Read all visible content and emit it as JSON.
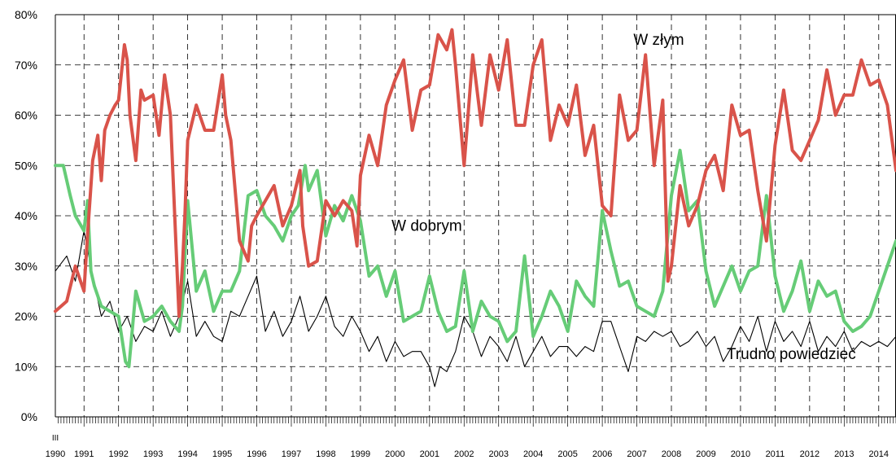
{
  "chart_data": {
    "type": "line",
    "title": "",
    "xlabel": "",
    "ylabel": "",
    "x_range": [
      1990.17,
      2014.5
    ],
    "ylim": [
      0,
      80
    ],
    "y_ticks": [
      "0%",
      "10%",
      "20%",
      "30%",
      "40%",
      "50%",
      "60%",
      "70%",
      "80%"
    ],
    "x_start_month_label": "III",
    "x_ticks": [
      "1990",
      "1991",
      "1992",
      "1993",
      "1994",
      "1995",
      "1996",
      "1997",
      "1998",
      "1999",
      "2000",
      "2001",
      "2002",
      "2003",
      "2004",
      "2005",
      "2006",
      "2007",
      "2008",
      "2009",
      "2010",
      "2011",
      "2012",
      "2013",
      "2014"
    ],
    "grid": true,
    "legend": "none",
    "annotations": [
      {
        "text": "W złym",
        "x": 2006.9,
        "y": 74
      },
      {
        "text": "W dobrym",
        "x": 1999.9,
        "y": 37
      },
      {
        "text": "Trudno powiedzieć",
        "x": 2009.6,
        "y": 11.5
      }
    ],
    "series": [
      {
        "label": "W złym",
        "color": "#d9534a",
        "x": [
          1990.17,
          1990.5,
          1990.75,
          1991.0,
          1991.1,
          1991.25,
          1991.4,
          1991.5,
          1991.6,
          1991.75,
          1991.9,
          1992.0,
          1992.17,
          1992.25,
          1992.33,
          1992.5,
          1992.65,
          1992.75,
          1993.0,
          1993.17,
          1993.33,
          1993.5,
          1993.75,
          1993.85,
          1993.92,
          1994.0,
          1994.25,
          1994.5,
          1994.75,
          1995.0,
          1995.1,
          1995.25,
          1995.5,
          1995.75,
          1995.85,
          1996.0,
          1996.25,
          1996.5,
          1996.75,
          1997.0,
          1997.25,
          1997.33,
          1997.5,
          1997.75,
          1998.0,
          1998.25,
          1998.5,
          1998.75,
          1998.9,
          1999.0,
          1999.25,
          1999.5,
          1999.75,
          2000.0,
          2000.25,
          2000.5,
          2000.75,
          2001.0,
          2001.25,
          2001.5,
          2001.65,
          2001.75,
          2002.0,
          2002.25,
          2002.5,
          2002.75,
          2003.0,
          2003.25,
          2003.5,
          2003.75,
          2004.0,
          2004.25,
          2004.5,
          2004.75,
          2005.0,
          2005.25,
          2005.5,
          2005.75,
          2006.0,
          2006.25,
          2006.5,
          2006.75,
          2007.0,
          2007.25,
          2007.5,
          2007.75,
          2007.9,
          2008.0,
          2008.25,
          2008.5,
          2008.75,
          2009.0,
          2009.25,
          2009.5,
          2009.75,
          2010.0,
          2010.25,
          2010.5,
          2010.75,
          2011.0,
          2011.25,
          2011.5,
          2011.75,
          2012.0,
          2012.25,
          2012.5,
          2012.75,
          2013.0,
          2013.25,
          2013.5,
          2013.75,
          2014.0,
          2014.25,
          2014.5
        ],
        "values": [
          21,
          23,
          30,
          25,
          36,
          51,
          56,
          47,
          57,
          60,
          62,
          63,
          74,
          71,
          60,
          51,
          65,
          63,
          64,
          56,
          68,
          60,
          20,
          30,
          40,
          55,
          62,
          57,
          57,
          68,
          60,
          55,
          35,
          31,
          38,
          40,
          43,
          46,
          38,
          42,
          49,
          38,
          30,
          31,
          43,
          40,
          43,
          41,
          34,
          48,
          56,
          50,
          62,
          67,
          71,
          57,
          65,
          66,
          76,
          73,
          77,
          70,
          50,
          72,
          58,
          72,
          65,
          75,
          58,
          58,
          70,
          75,
          55,
          62,
          58,
          66,
          52,
          58,
          42,
          40,
          64,
          55,
          57,
          72,
          50,
          63,
          27,
          30,
          46,
          38,
          42,
          49,
          52,
          45,
          62,
          56,
          57,
          45,
          35,
          54,
          65,
          53,
          51,
          55,
          59,
          69,
          60,
          64,
          64,
          71,
          66,
          67,
          62,
          49
        ]
      },
      {
        "label": "W dobrym",
        "color": "#66cc77",
        "x": [
          1990.17,
          1990.4,
          1990.6,
          1990.75,
          1991.0,
          1991.1,
          1991.2,
          1991.3,
          1991.5,
          1991.75,
          1992.0,
          1992.2,
          1992.3,
          1992.5,
          1992.75,
          1993.0,
          1993.25,
          1993.5,
          1993.75,
          1993.85,
          1994.0,
          1994.25,
          1994.5,
          1994.75,
          1995.0,
          1995.25,
          1995.5,
          1995.75,
          1996.0,
          1996.25,
          1996.5,
          1996.75,
          1997.0,
          1997.2,
          1997.4,
          1997.5,
          1997.75,
          1998.0,
          1998.25,
          1998.5,
          1998.75,
          1999.0,
          1999.25,
          1999.5,
          1999.75,
          2000.0,
          2000.25,
          2000.5,
          2000.75,
          2001.0,
          2001.25,
          2001.5,
          2001.75,
          2002.0,
          2002.25,
          2002.5,
          2002.75,
          2003.0,
          2003.25,
          2003.5,
          2003.75,
          2004.0,
          2004.25,
          2004.5,
          2004.75,
          2005.0,
          2005.25,
          2005.5,
          2005.75,
          2006.0,
          2006.25,
          2006.5,
          2006.75,
          2007.0,
          2007.25,
          2007.5,
          2007.75,
          2008.0,
          2008.25,
          2008.5,
          2008.75,
          2009.0,
          2009.25,
          2009.5,
          2009.75,
          2010.0,
          2010.25,
          2010.5,
          2010.75,
          2011.0,
          2011.25,
          2011.5,
          2011.75,
          2012.0,
          2012.25,
          2012.5,
          2012.75,
          2013.0,
          2013.25,
          2013.5,
          2013.75,
          2014.0,
          2014.25,
          2014.5
        ],
        "values": [
          50,
          50,
          44,
          40,
          37,
          43,
          29,
          26,
          22,
          21,
          20,
          11,
          10,
          25,
          19,
          20,
          22,
          19,
          17,
          22,
          43,
          25,
          29,
          21,
          25,
          25,
          29,
          44,
          45,
          40,
          38,
          35,
          40,
          42,
          50,
          45,
          49,
          36,
          42,
          39,
          44,
          39,
          28,
          30,
          24,
          29,
          19,
          20,
          21,
          28,
          21,
          17,
          18,
          29,
          17,
          23,
          20,
          19,
          15,
          17,
          32,
          16,
          20,
          25,
          22,
          17,
          27,
          24,
          22,
          41,
          33,
          26,
          27,
          22,
          21,
          20,
          25,
          44,
          53,
          41,
          43,
          29,
          22,
          26,
          30,
          25,
          29,
          30,
          44,
          28,
          21,
          25,
          31,
          21,
          27,
          24,
          25,
          19,
          17,
          18,
          20,
          25,
          30,
          35
        ]
      },
      {
        "label": "Trudno powiedzieć",
        "color": "#000000",
        "x": [
          1990.17,
          1990.5,
          1990.75,
          1991.0,
          1991.25,
          1991.5,
          1991.75,
          1992.0,
          1992.25,
          1992.5,
          1992.75,
          1993.0,
          1993.25,
          1993.5,
          1993.75,
          1994.0,
          1994.25,
          1994.5,
          1994.75,
          1995.0,
          1995.25,
          1995.5,
          1995.75,
          1996.0,
          1996.25,
          1996.5,
          1996.75,
          1997.0,
          1997.25,
          1997.5,
          1997.75,
          1998.0,
          1998.25,
          1998.5,
          1998.75,
          1999.0,
          1999.25,
          1999.5,
          1999.75,
          2000.0,
          2000.25,
          2000.5,
          2000.75,
          2001.0,
          2001.15,
          2001.3,
          2001.5,
          2001.75,
          2002.0,
          2002.25,
          2002.5,
          2002.75,
          2003.0,
          2003.25,
          2003.5,
          2003.75,
          2004.0,
          2004.25,
          2004.5,
          2004.75,
          2005.0,
          2005.25,
          2005.5,
          2005.75,
          2006.0,
          2006.25,
          2006.5,
          2006.75,
          2007.0,
          2007.25,
          2007.5,
          2007.75,
          2008.0,
          2008.25,
          2008.5,
          2008.75,
          2009.0,
          2009.25,
          2009.5,
          2009.75,
          2010.0,
          2010.25,
          2010.5,
          2010.75,
          2011.0,
          2011.25,
          2011.5,
          2011.75,
          2012.0,
          2012.25,
          2012.5,
          2012.75,
          2013.0,
          2013.25,
          2013.5,
          2013.75,
          2014.0,
          2014.25,
          2014.5
        ],
        "values": [
          29,
          32,
          27,
          37,
          28,
          20,
          23,
          17,
          20,
          15,
          18,
          17,
          21,
          16,
          20,
          27,
          16,
          19,
          16,
          15,
          21,
          20,
          24,
          28,
          17,
          21,
          16,
          19,
          24,
          17,
          20,
          24,
          18,
          16,
          20,
          17,
          13,
          16,
          11,
          15,
          12,
          13,
          13,
          10,
          6,
          10,
          9,
          13,
          20,
          17,
          12,
          16,
          14,
          11,
          16,
          10,
          13,
          16,
          12,
          14,
          14,
          12,
          14,
          13,
          19,
          19,
          14,
          9,
          16,
          15,
          17,
          16,
          17,
          14,
          15,
          17,
          14,
          16,
          11,
          14,
          18,
          15,
          20,
          13,
          19,
          15,
          17,
          14,
          19,
          13,
          16,
          14,
          17,
          13,
          15,
          14,
          15,
          14,
          16
        ]
      }
    ]
  }
}
